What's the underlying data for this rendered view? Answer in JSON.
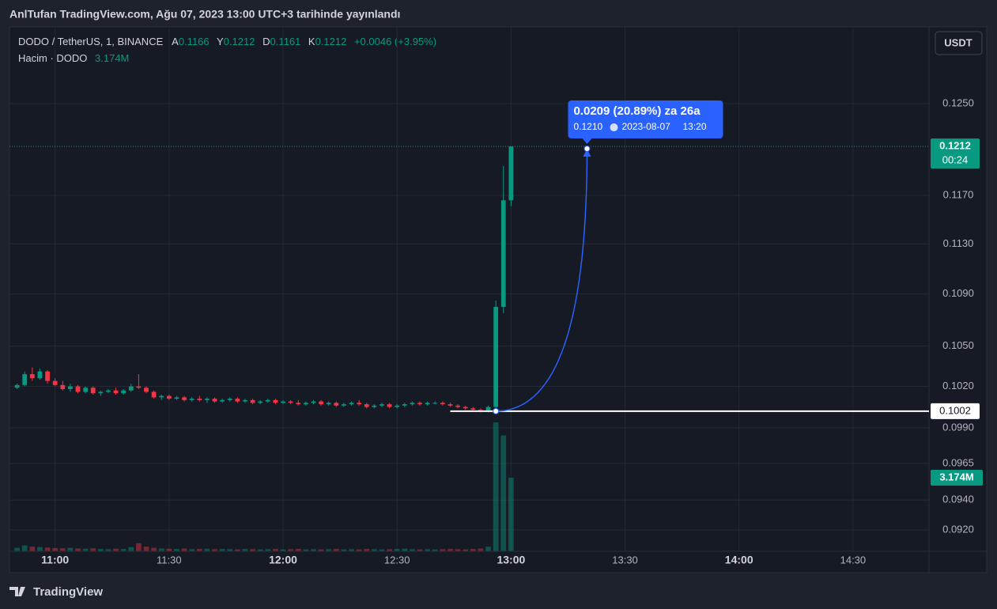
{
  "header": {
    "title": "AnlTufan TradingView.com, Ağu 07, 2023 13:00 UTC+3 tarihinde yayınlandı"
  },
  "chart_data": {
    "type": "candlestick",
    "title": "DODO / TetherUS, 1, BINANCE",
    "ohlc_labels": [
      "A",
      "Y",
      "D",
      "K"
    ],
    "ohlc_values": [
      0.1166,
      0.1212,
      0.1161,
      0.1212
    ],
    "change": "+0.0046 (+3.95%)",
    "volume_title": "Hacim · DODO",
    "currency": "USDT",
    "x": [
      "10:50",
      "10:52",
      "10:54",
      "10:56",
      "10:58",
      "11:00",
      "11:02",
      "11:04",
      "11:06",
      "11:08",
      "11:10",
      "11:12",
      "11:14",
      "11:16",
      "11:18",
      "11:20",
      "11:22",
      "11:24",
      "11:26",
      "11:28",
      "11:30",
      "11:32",
      "11:34",
      "11:36",
      "11:38",
      "11:40",
      "11:42",
      "11:44",
      "11:46",
      "11:48",
      "11:50",
      "11:52",
      "11:54",
      "11:56",
      "11:58",
      "12:00",
      "12:02",
      "12:04",
      "12:06",
      "12:08",
      "12:10",
      "12:12",
      "12:14",
      "12:16",
      "12:18",
      "12:20",
      "12:22",
      "12:24",
      "12:26",
      "12:28",
      "12:30",
      "12:32",
      "12:34",
      "12:36",
      "12:38",
      "12:40",
      "12:42",
      "12:44",
      "12:46",
      "12:48",
      "12:50",
      "12:52",
      "12:54",
      "12:56",
      "12:58",
      "13:00"
    ],
    "open": [
      0.1019,
      0.1021,
      0.1029,
      0.1026,
      0.1031,
      0.1024,
      0.1021,
      0.1018,
      0.102,
      0.1016,
      0.1019,
      0.1015,
      0.1016,
      0.1017,
      0.1015,
      0.1017,
      0.102,
      0.1019,
      0.1016,
      0.1012,
      0.1013,
      0.1011,
      0.1012,
      0.101,
      0.1011,
      0.101,
      0.1011,
      0.1009,
      0.101,
      0.1011,
      0.1009,
      0.101,
      0.1008,
      0.1009,
      0.101,
      0.1008,
      0.1009,
      0.1008,
      0.1007,
      0.1008,
      0.1009,
      0.1007,
      0.1008,
      0.1006,
      0.1007,
      0.1008,
      0.1007,
      0.1005,
      0.1006,
      0.1007,
      0.1005,
      0.1006,
      0.1007,
      0.1008,
      0.1007,
      0.1008,
      0.1008,
      0.1007,
      0.1006,
      0.1005,
      0.1004,
      0.1003,
      0.1002,
      0.1005,
      0.108,
      0.1166
    ],
    "high": [
      0.1022,
      0.1031,
      0.1034,
      0.1033,
      0.1032,
      0.1026,
      0.1024,
      0.1022,
      0.1021,
      0.102,
      0.102,
      0.1017,
      0.1018,
      0.1019,
      0.1018,
      0.1022,
      0.1029,
      0.102,
      0.1017,
      0.1014,
      0.1014,
      0.1013,
      0.1013,
      0.1012,
      0.1013,
      0.1012,
      0.1012,
      0.1011,
      0.1012,
      0.1012,
      0.1011,
      0.1011,
      0.101,
      0.1011,
      0.1011,
      0.101,
      0.101,
      0.101,
      0.1009,
      0.101,
      0.101,
      0.1009,
      0.1009,
      0.1008,
      0.1009,
      0.101,
      0.1008,
      0.1007,
      0.1008,
      0.1008,
      0.1007,
      0.1008,
      0.1009,
      0.1009,
      0.1009,
      0.1009,
      0.1009,
      0.1008,
      0.1007,
      0.1006,
      0.1005,
      0.1004,
      0.1006,
      0.1085,
      0.1195,
      0.1212
    ],
    "low": [
      0.1018,
      0.102,
      0.1024,
      0.1025,
      0.1022,
      0.102,
      0.1017,
      0.1016,
      0.1015,
      0.1015,
      0.1014,
      0.1013,
      0.1015,
      0.1014,
      0.1014,
      0.1016,
      0.1018,
      0.1015,
      0.1011,
      0.101,
      0.101,
      0.101,
      0.1009,
      0.1009,
      0.1009,
      0.1008,
      0.1008,
      0.1008,
      0.1009,
      0.1008,
      0.1008,
      0.1007,
      0.1007,
      0.1008,
      0.1007,
      0.1007,
      0.1007,
      0.1006,
      0.1006,
      0.1007,
      0.1006,
      0.1006,
      0.1005,
      0.1005,
      0.1006,
      0.1006,
      0.1004,
      0.1004,
      0.1005,
      0.1004,
      0.1004,
      0.1005,
      0.1006,
      0.1006,
      0.1006,
      0.1007,
      0.1006,
      0.1005,
      0.1004,
      0.1003,
      0.1002,
      0.1001,
      0.1001,
      0.1004,
      0.1075,
      0.1161
    ],
    "close": [
      0.1021,
      0.1029,
      0.1026,
      0.1031,
      0.1024,
      0.1021,
      0.1018,
      0.102,
      0.1016,
      0.1019,
      0.1015,
      0.1016,
      0.1017,
      0.1015,
      0.1017,
      0.102,
      0.1019,
      0.1016,
      0.1012,
      0.1013,
      0.1011,
      0.1012,
      0.101,
      0.1011,
      0.101,
      0.1011,
      0.1009,
      0.101,
      0.1011,
      0.1009,
      0.101,
      0.1008,
      0.1009,
      0.101,
      0.1008,
      0.1009,
      0.1008,
      0.1007,
      0.1008,
      0.1009,
      0.1007,
      0.1008,
      0.1006,
      0.1007,
      0.1008,
      0.1007,
      0.1005,
      0.1006,
      0.1007,
      0.1005,
      0.1006,
      0.1007,
      0.1008,
      0.1007,
      0.1008,
      0.1008,
      0.1007,
      0.1006,
      0.1005,
      0.1004,
      0.1003,
      0.1002,
      0.1005,
      0.108,
      0.1166,
      0.1212
    ],
    "volume": [
      150000,
      250000,
      200000,
      180000,
      160000,
      140000,
      130000,
      150000,
      120000,
      110000,
      130000,
      100000,
      90000,
      110000,
      100000,
      180000,
      350000,
      200000,
      150000,
      120000,
      110000,
      100000,
      120000,
      90000,
      100000,
      110000,
      90000,
      100000,
      90000,
      80000,
      100000,
      90000,
      80000,
      90000,
      100000,
      80000,
      90000,
      100000,
      80000,
      90000,
      80000,
      90000,
      100000,
      80000,
      90000,
      80000,
      100000,
      90000,
      80000,
      90000,
      100000,
      110000,
      90000,
      80000,
      90000,
      80000,
      90000,
      100000,
      90000,
      80000,
      100000,
      120000,
      200000,
      5560000,
      5000000,
      3174000
    ],
    "up_color": "#089981",
    "down_color": "#f23645",
    "xlim": [
      "10:48",
      "14:50"
    ],
    "xticks": [
      "11:00",
      "11:30",
      "12:00",
      "12:30",
      "13:00",
      "13:30",
      "14:00",
      "14:30"
    ],
    "ylim": [
      0.0906,
      0.132
    ],
    "log_scale": true,
    "grid": true,
    "yticks": [
      {
        "value": 0.125,
        "label": "0.1250"
      },
      {
        "value": 0.117,
        "label": "0.1170"
      },
      {
        "value": 0.113,
        "label": "0.1130"
      },
      {
        "value": 0.109,
        "label": "0.1090"
      },
      {
        "value": 0.105,
        "label": "0.1050"
      },
      {
        "value": 0.102,
        "label": "0.1020"
      },
      {
        "value": 0.099,
        "label": "0.0990"
      },
      0.0965,
      {
        "value": 0.094,
        "label": "0.0940"
      },
      {
        "value": 0.092,
        "label": "0.0920"
      }
    ],
    "y2lim": [
      0,
      22600000
    ],
    "last_price": 0.1212,
    "countdown": "00:24",
    "current_volume": {
      "value": 3174000,
      "label": "3.174M"
    },
    "horizontal_line": 0.1002,
    "measure": {
      "text": "0.0209 (20.89%) za 26a",
      "price": {
        "value": 0.121,
        "label": "0.1210"
      },
      "date": "2023-08-07",
      "time": "13:20"
    }
  },
  "footer": {
    "brand": "TradingView"
  }
}
